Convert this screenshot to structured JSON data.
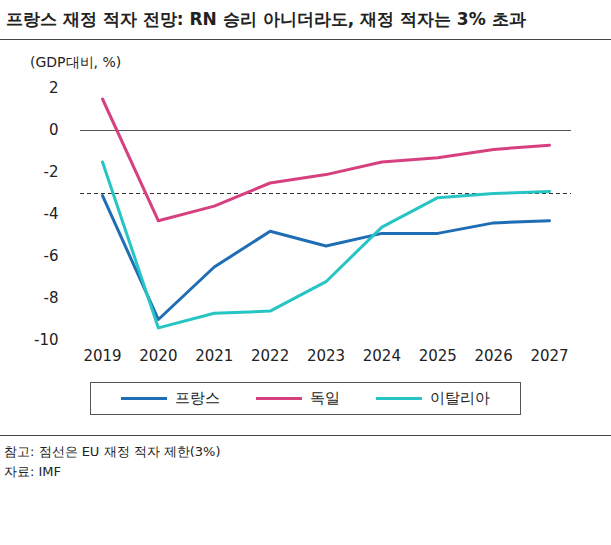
{
  "chart_data": {
    "type": "line",
    "title": "프랑스 재정 적자 전망: RN 승리 아니더라도, 재정 적자는 3% 초과",
    "y_label": "(GDP대비, %)",
    "x": [
      2019,
      2020,
      2021,
      2022,
      2023,
      2024,
      2025,
      2026,
      2027
    ],
    "series": [
      {
        "name": "프랑스",
        "color": "#1f6db5",
        "values": [
          -3.1,
          -9.0,
          -6.5,
          -4.8,
          -5.5,
          -4.9,
          -4.9,
          -4.4,
          -4.3
        ]
      },
      {
        "name": "독일",
        "color": "#d6407f",
        "values": [
          1.5,
          -4.3,
          -3.6,
          -2.5,
          -2.1,
          -1.5,
          -1.3,
          -0.9,
          -0.7
        ]
      },
      {
        "name": "이탈리아",
        "color": "#27c4c4",
        "values": [
          -1.5,
          -9.4,
          -8.7,
          -8.6,
          -7.2,
          -4.6,
          -3.2,
          -3.0,
          -2.9
        ]
      }
    ],
    "xlim": [
      2019,
      2027
    ],
    "xticks": [
      2019,
      2020,
      2021,
      2022,
      2023,
      2024,
      2025,
      2026,
      2027
    ],
    "ylim": [
      -10,
      2
    ],
    "yticks": [
      -10,
      -8,
      -6,
      -4,
      -2,
      0,
      2
    ],
    "grid": false,
    "legend": "bottom",
    "reference_line": {
      "value": -3,
      "line_style": "dashed",
      "color": "#333333"
    },
    "notes": [
      "참고: 점선은 EU 재정 적자 제한(3%)",
      "자료: IMF"
    ]
  }
}
